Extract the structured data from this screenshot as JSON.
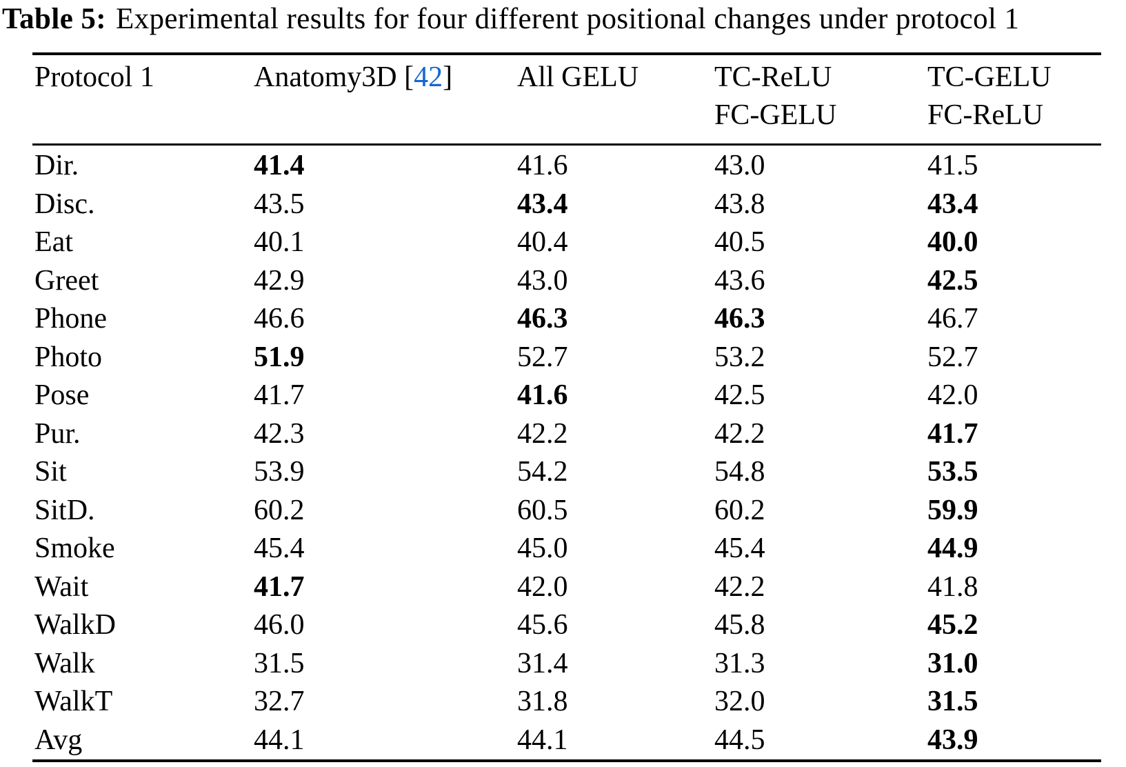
{
  "title": {
    "label": "Table 5:",
    "text": "Experimental results for four different positional changes under protocol 1"
  },
  "colors": {
    "background": "#ffffff",
    "text": "#000000",
    "citation_blue": "#1566d2"
  },
  "table": {
    "columns": [
      {
        "line1": "Protocol 1",
        "line2": ""
      },
      {
        "pre": "Anatomy3D [",
        "cite": "42",
        "post": "]",
        "line2": ""
      },
      {
        "line1": "All GELU",
        "line2": ""
      },
      {
        "line1": "TC-ReLU",
        "line2": "FC-GELU"
      },
      {
        "line1": "TC-GELU",
        "line2": "FC-ReLU"
      }
    ],
    "rows": [
      {
        "label": "Dir.",
        "values": [
          "41.4",
          "41.6",
          "43.0",
          "41.5"
        ],
        "bold": [
          true,
          false,
          false,
          false
        ]
      },
      {
        "label": "Disc.",
        "values": [
          "43.5",
          "43.4",
          "43.8",
          "43.4"
        ],
        "bold": [
          false,
          true,
          false,
          true
        ]
      },
      {
        "label": "Eat",
        "values": [
          "40.1",
          "40.4",
          "40.5",
          "40.0"
        ],
        "bold": [
          false,
          false,
          false,
          true
        ]
      },
      {
        "label": "Greet",
        "values": [
          "42.9",
          "43.0",
          "43.6",
          "42.5"
        ],
        "bold": [
          false,
          false,
          false,
          true
        ]
      },
      {
        "label": "Phone",
        "values": [
          "46.6",
          "46.3",
          "46.3",
          "46.7"
        ],
        "bold": [
          false,
          true,
          true,
          false
        ]
      },
      {
        "label": "Photo",
        "values": [
          "51.9",
          "52.7",
          "53.2",
          "52.7"
        ],
        "bold": [
          true,
          false,
          false,
          false
        ]
      },
      {
        "label": "Pose",
        "values": [
          "41.7",
          "41.6",
          "42.5",
          "42.0"
        ],
        "bold": [
          false,
          true,
          false,
          false
        ]
      },
      {
        "label": "Pur.",
        "values": [
          "42.3",
          "42.2",
          "42.2",
          "41.7"
        ],
        "bold": [
          false,
          false,
          false,
          true
        ]
      },
      {
        "label": "Sit",
        "values": [
          "53.9",
          "54.2",
          "54.8",
          "53.5"
        ],
        "bold": [
          false,
          false,
          false,
          true
        ]
      },
      {
        "label": "SitD.",
        "values": [
          "60.2",
          "60.5",
          "60.2",
          "59.9"
        ],
        "bold": [
          false,
          false,
          false,
          true
        ]
      },
      {
        "label": "Smoke",
        "values": [
          "45.4",
          "45.0",
          "45.4",
          "44.9"
        ],
        "bold": [
          false,
          false,
          false,
          true
        ]
      },
      {
        "label": "Wait",
        "values": [
          "41.7",
          "42.0",
          "42.2",
          "41.8"
        ],
        "bold": [
          true,
          false,
          false,
          false
        ]
      },
      {
        "label": "WalkD",
        "values": [
          "46.0",
          "45.6",
          "45.8",
          "45.2"
        ],
        "bold": [
          false,
          false,
          false,
          true
        ]
      },
      {
        "label": "Walk",
        "values": [
          "31.5",
          "31.4",
          "31.3",
          "31.0"
        ],
        "bold": [
          false,
          false,
          false,
          true
        ]
      },
      {
        "label": "WalkT",
        "values": [
          "32.7",
          "31.8",
          "32.0",
          "31.5"
        ],
        "bold": [
          false,
          false,
          false,
          true
        ]
      },
      {
        "label": "Avg",
        "values": [
          "44.1",
          "44.1",
          "44.5",
          "43.9"
        ],
        "bold": [
          false,
          false,
          false,
          true
        ]
      }
    ]
  }
}
